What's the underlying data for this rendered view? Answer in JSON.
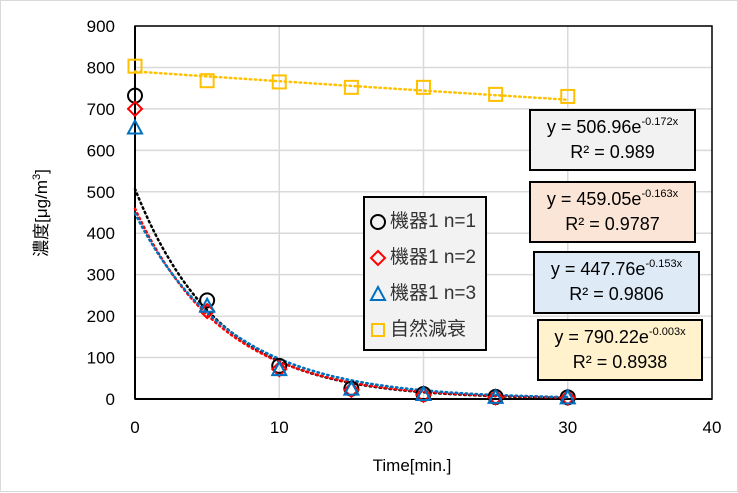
{
  "chart_data": {
    "type": "scatter",
    "xlabel": "Time[min.]",
    "ylabel": "濃度[μg/m³]",
    "ylabel_base": "濃度[μg/m",
    "ylabel_sup": "3",
    "ylabel_end": "]",
    "xlim": [
      0,
      40
    ],
    "ylim": [
      0,
      900
    ],
    "xticks": [
      0,
      10,
      20,
      30,
      40
    ],
    "yticks": [
      0,
      100,
      200,
      300,
      400,
      500,
      600,
      700,
      800,
      900
    ],
    "grid": true,
    "legend_position": "center-right",
    "series": [
      {
        "name": "機器1 n=1",
        "marker": "circle",
        "color": "#000000",
        "x": [
          0,
          5,
          10,
          15,
          20,
          25,
          30
        ],
        "y": [
          732,
          238,
          80,
          25,
          12,
          5,
          4
        ],
        "trend": {
          "a": 506.96,
          "b": -0.172,
          "eq_prefix": "y = 506.96e",
          "eq_exp": "-0.172x",
          "r2": "R² = 0.989",
          "box_color": "#f2f2f2"
        }
      },
      {
        "name": "機器1 n=2",
        "marker": "diamond",
        "color": "#ff0000",
        "x": [
          0,
          5,
          10,
          15,
          20,
          25,
          30
        ],
        "y": [
          700,
          212,
          72,
          22,
          10,
          4,
          3
        ],
        "trend": {
          "a": 459.05,
          "b": -0.163,
          "eq_prefix": "y = 459.05e",
          "eq_exp": "-0.163x",
          "r2": "R² = 0.9787",
          "box_color": "#fbe5d6"
        }
      },
      {
        "name": "機器1 n=3",
        "marker": "triangle",
        "color": "#0070c0",
        "x": [
          0,
          5,
          10,
          15,
          20,
          25,
          30
        ],
        "y": [
          655,
          225,
          72,
          25,
          12,
          5,
          4
        ],
        "trend": {
          "a": 447.76,
          "b": -0.153,
          "eq_prefix": "y = 447.76e",
          "eq_exp": "-0.153x",
          "r2": "R² = 0.9806",
          "box_color": "#deebf7"
        }
      },
      {
        "name": "自然減衰",
        "marker": "square",
        "color": "#ffc000",
        "x": [
          0,
          5,
          10,
          15,
          20,
          25,
          30
        ],
        "y": [
          803,
          768,
          765,
          752,
          752,
          735,
          730
        ],
        "trend": {
          "a": 790.22,
          "b": -0.003,
          "eq_prefix": "y = 790.22e",
          "eq_exp": "-0.003x",
          "r2": "R² = 0.8938",
          "box_color": "#fff2cc"
        }
      }
    ]
  }
}
